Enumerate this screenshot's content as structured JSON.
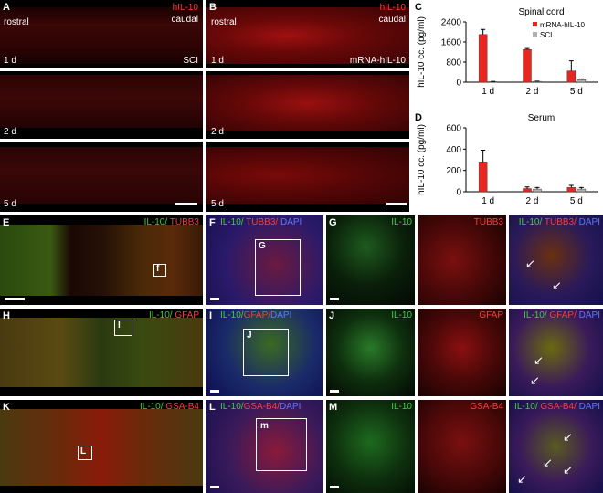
{
  "panels": {
    "A": {
      "letter": "A",
      "left": "rostral",
      "right": "caudal",
      "marker": "hIL-10",
      "row1": "1 d",
      "row2": "2 d",
      "row3": "5 d",
      "group": "SCI"
    },
    "B": {
      "letter": "B",
      "left": "rostral",
      "right": "caudal",
      "marker": "hIL-10",
      "row1": "1 d",
      "row2": "2 d",
      "row3": "5 d",
      "group": "mRNA-hIL-10"
    },
    "E": {
      "letter": "E",
      "green": "IL-10/",
      "red": " TUBB3",
      "box": "f"
    },
    "F": {
      "letter": "F",
      "green": "IL-10/",
      "red": " TUBB3/",
      "blue": " DAPI",
      "box": "G"
    },
    "G": {
      "letter": "G",
      "c1": "IL-10",
      "c2": "TUBB3",
      "green": "IL-10/",
      "red": " TUBB3/",
      "blue": " DAPI"
    },
    "H": {
      "letter": "H",
      "green": "IL-10/",
      "red": " GFAP",
      "box": "I"
    },
    "I": {
      "letter": "I",
      "green": "IL-10/",
      "red": "GFAP/",
      "blue": "DAPI",
      "box": "J"
    },
    "J": {
      "letter": "J",
      "c1": "IL-10",
      "c2": "GFAP",
      "green": "IL-10/",
      "red": " GFAP/",
      "blue": " DAPI"
    },
    "K": {
      "letter": "K",
      "green": "IL-10/",
      "red": " GSA-B4",
      "box": "L"
    },
    "L": {
      "letter": "L",
      "green": "IL-10/",
      "red": "GSA-B4/",
      "blue": "DAPI",
      "box": "m"
    },
    "M": {
      "letter": "M",
      "c1": "IL-10",
      "c2": "GSA-B4",
      "green": "IL-10/",
      "red": " GSA-B4/",
      "blue": " DAPI"
    }
  },
  "chart_data": [
    {
      "type": "bar",
      "panel": "C",
      "title": "Spinal cord",
      "ylabel": "hIL-10 cc. (pg/ml)",
      "categories": [
        "1 d",
        "2 d",
        "5 d"
      ],
      "ylim": [
        0,
        2400
      ],
      "yticks": [
        "0",
        "800",
        "1600",
        "2400"
      ],
      "legend_position": "top-right",
      "series": [
        {
          "name": "mRNA-hIL-10",
          "color": "#e8261f",
          "values": [
            1900,
            1300,
            450
          ],
          "errors": [
            200,
            40,
            400
          ]
        },
        {
          "name": "SCI",
          "color": "#b0b0b0",
          "values": [
            20,
            30,
            100
          ],
          "errors": [
            10,
            10,
            30
          ]
        }
      ]
    },
    {
      "type": "bar",
      "panel": "D",
      "title": "Serum",
      "ylabel": "hIL-10 cc. (pg/ml)",
      "categories": [
        "1 d",
        "2 d",
        "5 d"
      ],
      "ylim": [
        0,
        600
      ],
      "yticks": [
        "0",
        "200",
        "400",
        "600"
      ],
      "series": [
        {
          "name": "mRNA-hIL-10",
          "color": "#e8261f",
          "values": [
            280,
            30,
            40
          ],
          "errors": [
            110,
            15,
            20
          ]
        },
        {
          "name": "SCI",
          "color": "#b0b0b0",
          "values": [
            0,
            25,
            25
          ],
          "errors": [
            0,
            15,
            15
          ]
        }
      ]
    }
  ]
}
